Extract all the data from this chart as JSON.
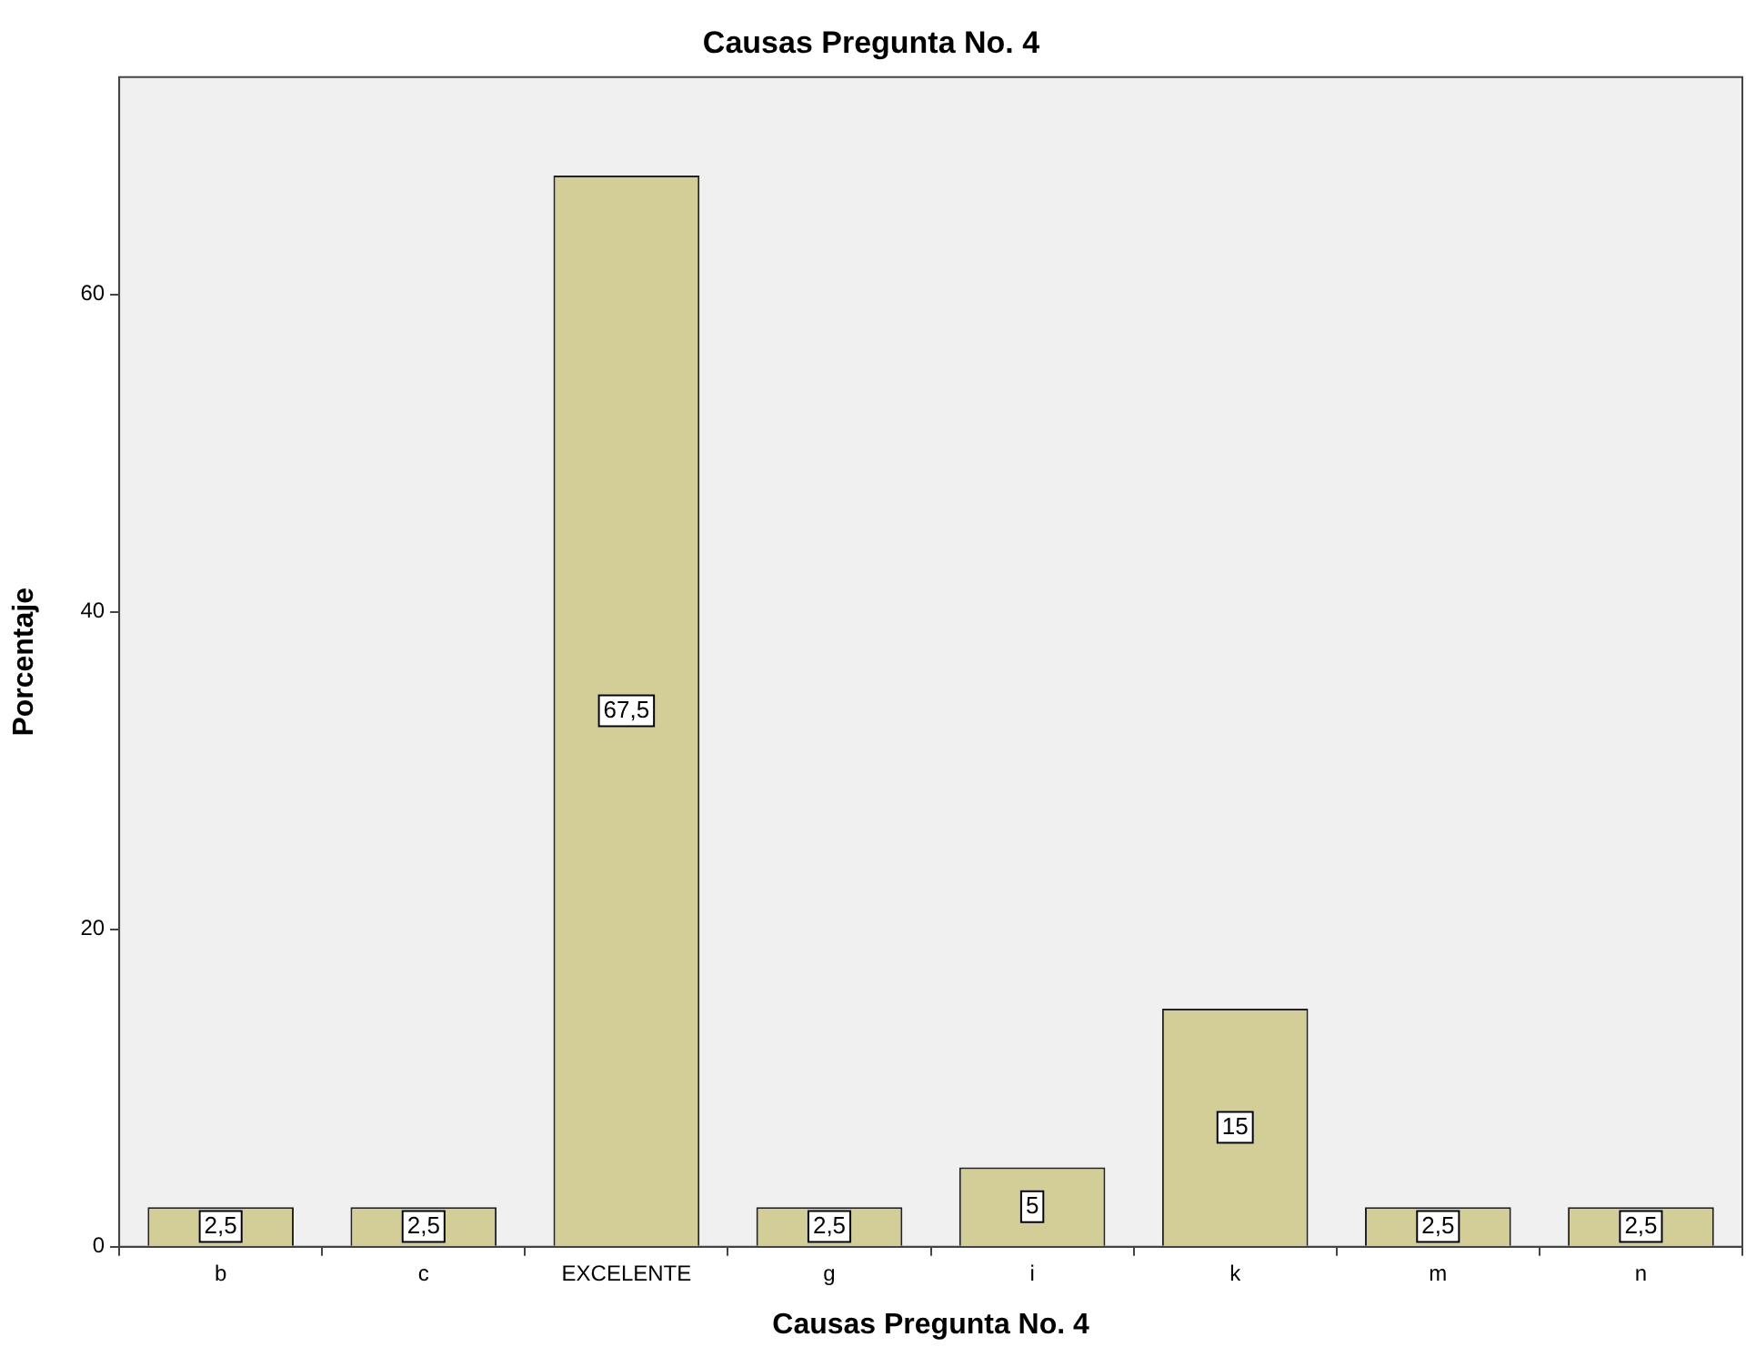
{
  "chart_data": {
    "type": "bar",
    "title": "Causas Pregunta No. 4",
    "xlabel": "Causas Pregunta No. 4",
    "ylabel": "Porcentaje",
    "categories": [
      "b",
      "c",
      "EXCELENTE",
      "g",
      "i",
      "k",
      "m",
      "n"
    ],
    "values": [
      2.5,
      2.5,
      67.5,
      2.5,
      5,
      15,
      2.5,
      2.5
    ],
    "value_labels": [
      "2,5",
      "2,5",
      "67,5",
      "2,5",
      "5",
      "15",
      "2,5",
      "2,5"
    ],
    "color": "#d3ce97",
    "ylim": [
      0,
      73.7
    ],
    "yticks": [
      0,
      20,
      40,
      60
    ],
    "grid": false,
    "legend": false
  }
}
